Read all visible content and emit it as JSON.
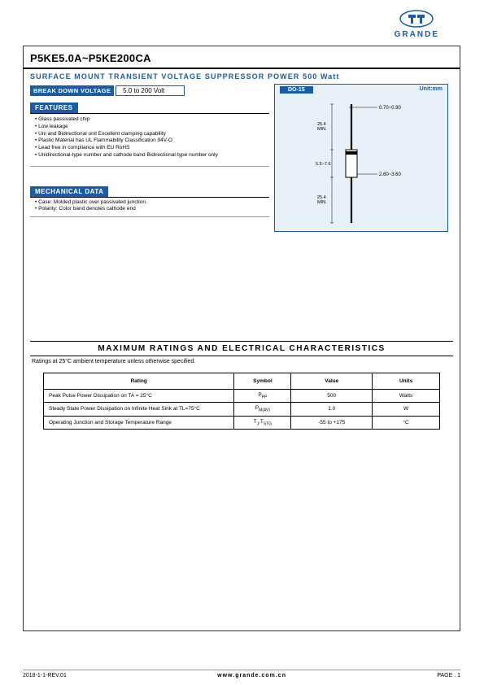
{
  "brand": "GRANDE",
  "part_number": "P5KE5.0A~P5KE200CA",
  "subtitle": "SURFACE MOUNT TRANSIENT VOLTAGE SUPPRESSOR POWER 500 Watt",
  "breakdown_voltage": {
    "label": "BREAK DOWN VOLTAGE",
    "value": "5.0 to 200 Volt"
  },
  "features": {
    "header": "FEATURES",
    "items": [
      "Glass passivated chip",
      "Low leakage",
      "Uni and Bidirectional unit Excellent clamping capability",
      "Plastic Material has UL Flammability Classification 94V-O",
      "Lead free in compliance with EU RoHS",
      "Unidirectional-type number and cathode band Bidirectional-type number only"
    ]
  },
  "mechanical": {
    "header": "MECHANICAL DATA",
    "items": [
      "Case: Molded plastic over passivated junction.",
      "Polarity: Color band denotes cathode end"
    ]
  },
  "diagram": {
    "package_label": "DO-15",
    "unit_label": "Unit:mm",
    "lead_diameter": "0.70~0.90",
    "lead_length": "25.4 MIN.",
    "body_length": "5.5~7.6",
    "body_diameter": "2.60~3.60",
    "colors": {
      "bg": "#e8f1f8",
      "stroke": "#1a5ca8"
    }
  },
  "ratings": {
    "title": "MAXIMUM RATINGS AND ELECTRICAL CHARACTERISTICS",
    "note": "Ratings at 25°C ambient temperature unless otherwise specified.",
    "columns": [
      "Rating",
      "Symbol",
      "Value",
      "Units"
    ],
    "rows": [
      {
        "rating": "Peak Pulse Power Dissipation on TA = 25°C",
        "symbol_html": "P<sub>PP</sub>",
        "value": "500",
        "units": "Watts"
      },
      {
        "rating": "Steady State Power Dissipation on Infinite Heat Sink at TL=75°C",
        "symbol_html": "P<sub>M(AV)</sub>",
        "value": "1.0",
        "units": "W"
      },
      {
        "rating": "Operating Junction and Storage Temperature Range",
        "symbol_html": "T<sub>J</sub>,T<sub>STG</sub>",
        "value": "-55 to +175",
        "units": "°C"
      }
    ]
  },
  "footer": {
    "left": "2018-1-1-REV.01",
    "center": "www.grande.com.cn",
    "right": "PAGE . 1"
  },
  "colors": {
    "brand_blue": "#1a5ca8",
    "border": "#333333",
    "text": "#000000"
  }
}
